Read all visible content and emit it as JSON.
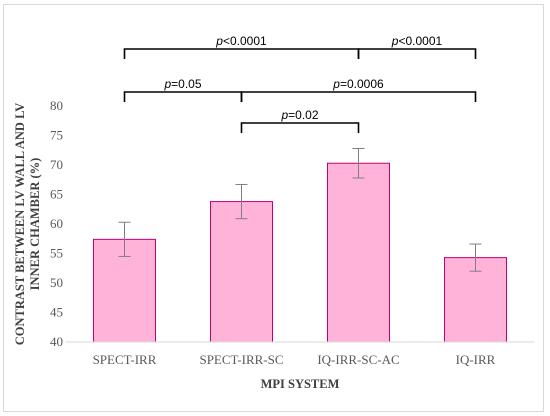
{
  "chart_data": {
    "type": "bar",
    "title": "",
    "xlabel": "MPI SYSTEM",
    "ylabel_lines": [
      "CONTRAST BETWEEN LV WALL AND LV",
      "INNER CHAMBER (%)"
    ],
    "categories": [
      "SPECT-IRR",
      "SPECT-IRR-SC",
      "IQ-IRR-SC-AC",
      "IQ-IRR"
    ],
    "values": [
      57.4,
      63.8,
      70.3,
      54.3
    ],
    "errors": [
      2.9,
      2.9,
      2.5,
      2.3
    ],
    "ylim": [
      40,
      80
    ],
    "yticks": [
      40,
      45,
      50,
      55,
      60,
      65,
      70,
      75,
      80
    ],
    "grid": false,
    "bar_fill": "#ffb3d9",
    "bar_stroke": "#c0007a",
    "annotations": [
      {
        "from": 0,
        "to": 2,
        "row": 0,
        "label": "<0.0001"
      },
      {
        "from": 2,
        "to": 3,
        "row": 0,
        "label": "<0.0001"
      },
      {
        "from": 0,
        "to": 1,
        "row": 1,
        "label": "=0.05"
      },
      {
        "from": 1,
        "to": 3,
        "row": 1,
        "label": "=0.0006"
      },
      {
        "from": 1,
        "to": 2,
        "row": 2,
        "label": "=0.02"
      }
    ],
    "annotation_prefix": "p"
  }
}
